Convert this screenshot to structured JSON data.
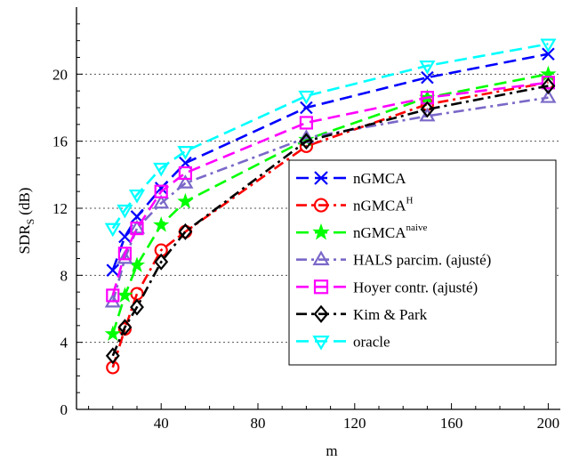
{
  "chart_data": {
    "type": "line",
    "xlabel": "m",
    "ylabel": "SDR",
    "ylabel_sub": "S",
    "ylabel_unit": "(dB)",
    "xlim": [
      5,
      205
    ],
    "ylim": [
      0,
      24
    ],
    "xticks": [
      40,
      80,
      120,
      160,
      200
    ],
    "yticks": [
      0,
      4,
      8,
      12,
      16,
      20
    ],
    "grid": "horizontal dotted",
    "legend_position": "lower-right",
    "x": [
      20,
      25,
      30,
      40,
      50,
      100,
      150,
      200
    ],
    "series": [
      {
        "name": "nGMCA",
        "name_sup": "",
        "color": "#0000ff",
        "dash": "dashed",
        "marker": "x",
        "values": [
          8.3,
          10.3,
          11.5,
          13.2,
          14.7,
          18.0,
          19.8,
          21.2
        ]
      },
      {
        "name": "nGMCA",
        "name_sup": "H",
        "color": "#ff0000",
        "dash": "dashdot",
        "marker": "circle",
        "values": [
          2.5,
          4.8,
          6.9,
          9.5,
          10.6,
          15.7,
          18.2,
          19.5
        ]
      },
      {
        "name": "nGMCA",
        "name_sup": "naive",
        "color": "#00ff00",
        "dash": "dashed",
        "marker": "star",
        "values": [
          4.5,
          6.8,
          8.6,
          11.0,
          12.4,
          16.1,
          18.6,
          20.0
        ]
      },
      {
        "name": "HALS parcim. (ajusté)",
        "name_sup": "",
        "color": "#7b68c8",
        "dash": "dashdot",
        "marker": "triangle-up",
        "values": [
          6.4,
          9.0,
          10.8,
          12.3,
          13.5,
          16.2,
          17.5,
          18.6
        ]
      },
      {
        "name": "Hoyer contr. (ajusté)",
        "name_sup": "",
        "color": "#ff00ff",
        "dash": "dashed",
        "marker": "square",
        "values": [
          6.8,
          9.3,
          10.8,
          13.0,
          14.1,
          17.1,
          18.6,
          19.5
        ]
      },
      {
        "name": "Kim & Park",
        "name_sup": "",
        "color": "#000000",
        "dash": "dashdot",
        "marker": "diamond",
        "values": [
          3.2,
          4.9,
          6.1,
          8.8,
          10.6,
          16.0,
          17.9,
          19.3
        ]
      },
      {
        "name": "oracle",
        "name_sup": "",
        "color": "#00ffff",
        "dash": "dashed",
        "marker": "triangle-down",
        "values": [
          10.8,
          11.9,
          12.8,
          14.4,
          15.4,
          18.7,
          20.5,
          21.8
        ]
      }
    ]
  }
}
